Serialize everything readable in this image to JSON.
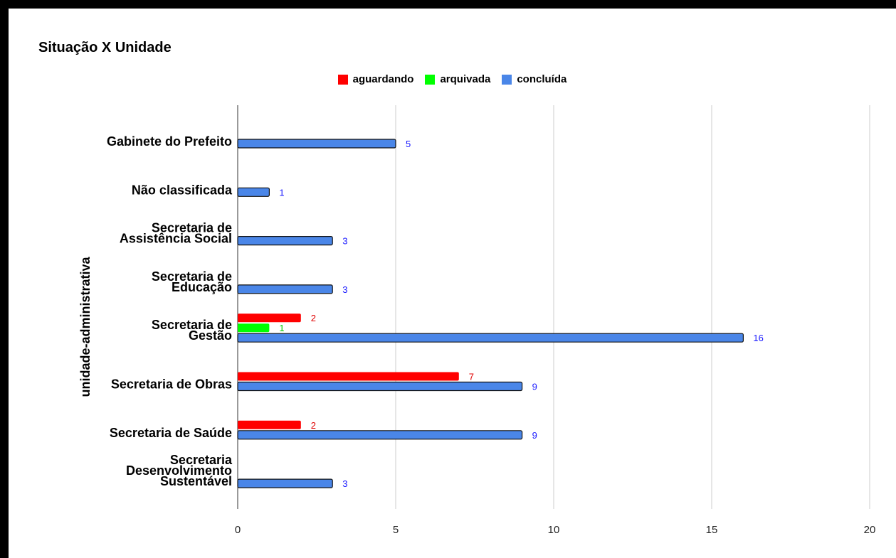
{
  "chart_data": {
    "type": "bar",
    "orientation": "horizontal",
    "title": "Situação X Unidade",
    "ylabel": "unidade-administrativa",
    "xlabel": "",
    "xlim": [
      0,
      20
    ],
    "xticks": [
      "0",
      "5",
      "10",
      "15",
      "20"
    ],
    "grid": true,
    "legend_position": "top",
    "categories": [
      [
        "Gabinete do Prefeito"
      ],
      [
        "Não classificada"
      ],
      [
        "Secretaria de",
        "Assistência Social"
      ],
      [
        "Secretaria de",
        "Educação"
      ],
      [
        "Secretaria de",
        "Gestão"
      ],
      [
        "Secretaria de Obras"
      ],
      [
        "Secretaria de Saúde"
      ],
      [
        "Secretaria",
        "Desenvolvimento",
        "Sustentável"
      ]
    ],
    "series": [
      {
        "name": "aguardando",
        "color": "#ff0000",
        "label_color": "#e00000",
        "values": [
          null,
          null,
          null,
          null,
          2,
          7,
          2,
          null
        ]
      },
      {
        "name": "arquivada",
        "color": "#00ff00",
        "label_color": "#00cc00",
        "values": [
          null,
          null,
          null,
          null,
          1,
          null,
          null,
          null
        ]
      },
      {
        "name": "concluída",
        "color": "#4a86e8",
        "label_color": "#1a1aff",
        "values": [
          5,
          1,
          3,
          3,
          16,
          9,
          9,
          3
        ]
      }
    ]
  }
}
